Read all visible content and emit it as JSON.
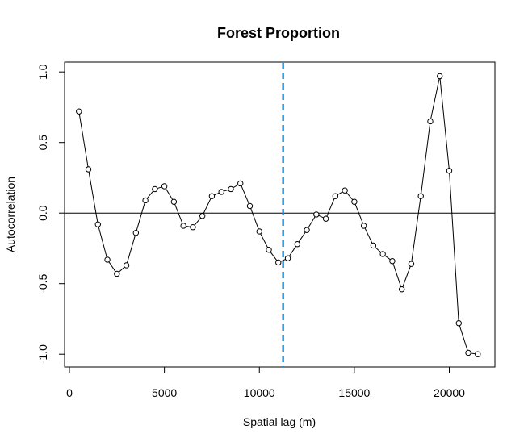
{
  "chart_data": {
    "type": "line",
    "title": "Forest Proportion",
    "xlabel": "Spatial lag (m)",
    "ylabel": "Autocorrelation",
    "xlim": [
      0,
      22500
    ],
    "ylim": [
      -1.08,
      1.08
    ],
    "xticks": [
      0,
      5000,
      10000,
      15000,
      20000
    ],
    "xtick_labels": [
      "0",
      "5000",
      "10000",
      "15000",
      "20000"
    ],
    "yticks": [
      -1.0,
      -0.5,
      0.0,
      0.5,
      1.0
    ],
    "ytick_labels": [
      "-1.0",
      "-0.5",
      "0.0",
      "0.5",
      "1.0"
    ],
    "reference_hline": 0,
    "reference_vline": 11250,
    "colors": {
      "series": "#000000",
      "vline": "#1f8dd6",
      "hline": "#000000"
    },
    "series": [
      {
        "marker": "open-circle",
        "x": [
          500,
          1000,
          1500,
          2000,
          2500,
          3000,
          3500,
          4000,
          4500,
          5000,
          5500,
          6000,
          6500,
          7000,
          7500,
          8000,
          8500,
          9000,
          9500,
          10000,
          10500,
          11000,
          11500,
          12000,
          12500,
          13000,
          13500,
          14000,
          14500,
          15000,
          15500,
          16000,
          16500,
          17000,
          17500,
          18000,
          18500,
          19000,
          19500,
          20000,
          20500,
          21000,
          21500
        ],
        "y": [
          0.72,
          0.31,
          -0.08,
          -0.33,
          -0.43,
          -0.37,
          -0.14,
          0.09,
          0.17,
          0.19,
          0.08,
          -0.09,
          -0.1,
          -0.02,
          0.12,
          0.15,
          0.17,
          0.21,
          0.05,
          -0.13,
          -0.26,
          -0.35,
          -0.32,
          -0.22,
          -0.12,
          -0.01,
          -0.04,
          0.12,
          0.16,
          0.08,
          -0.09,
          -0.23,
          -0.29,
          -0.34,
          -0.54,
          -0.36,
          0.12,
          0.65,
          0.97,
          0.3,
          -0.78,
          -0.99,
          -1.0
        ]
      }
    ]
  }
}
